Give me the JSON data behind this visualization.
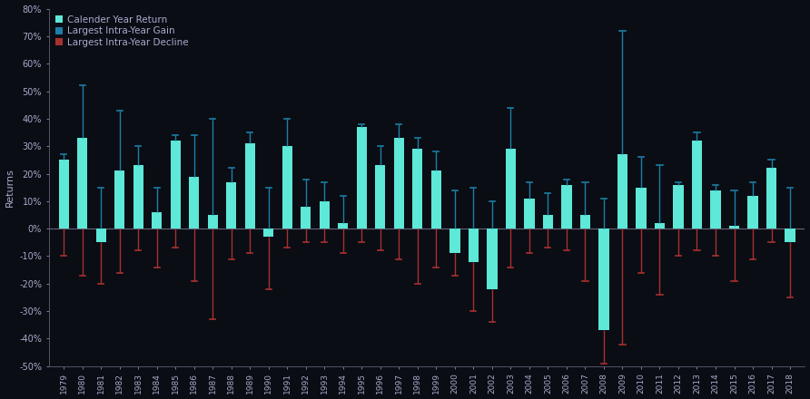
{
  "years": [
    1979,
    1980,
    1981,
    1982,
    1983,
    1984,
    1985,
    1986,
    1987,
    1988,
    1989,
    1990,
    1991,
    1992,
    1993,
    1994,
    1995,
    1996,
    1997,
    1998,
    1999,
    2000,
    2001,
    2002,
    2003,
    2004,
    2005,
    2006,
    2007,
    2008,
    2009,
    2010,
    2011,
    2012,
    2013,
    2014,
    2015,
    2016,
    2017,
    2018
  ],
  "calendar_returns": [
    25,
    33,
    -5,
    21,
    23,
    6,
    32,
    19,
    5,
    17,
    31,
    -3,
    30,
    8,
    10,
    2,
    37,
    23,
    33,
    29,
    21,
    -9,
    -12,
    -22,
    29,
    11,
    5,
    16,
    5,
    -37,
    27,
    15,
    2,
    16,
    32,
    14,
    1,
    12,
    22,
    -5
  ],
  "intra_year_gains": [
    27,
    52,
    15,
    43,
    30,
    15,
    34,
    34,
    40,
    22,
    35,
    15,
    40,
    18,
    17,
    12,
    38,
    30,
    38,
    33,
    28,
    14,
    15,
    10,
    44,
    17,
    13,
    18,
    17,
    11,
    72,
    26,
    23,
    17,
    35,
    16,
    14,
    17,
    25,
    15
  ],
  "intra_year_declines": [
    -10,
    -17,
    -20,
    -16,
    -8,
    -14,
    -7,
    -19,
    -33,
    -11,
    -9,
    -22,
    -7,
    -5,
    -5,
    -9,
    -5,
    -8,
    -11,
    -20,
    -14,
    -17,
    -30,
    -34,
    -14,
    -9,
    -7,
    -8,
    -19,
    -49,
    -42,
    -16,
    -24,
    -10,
    -8,
    -10,
    -19,
    -11,
    -5,
    -25
  ],
  "bar_color": "#5de8d8",
  "gain_line_color": "#1b7fa8",
  "decline_line_color": "#a83030",
  "bg_color": "#0a0d14",
  "fig_bg_color": "#0a0d14",
  "axis_line_color": "#555566",
  "tick_label_color": "#aaaacc",
  "ylabel_color": "#aaaacc",
  "ylim": [
    -50,
    80
  ],
  "yticks": [
    -50,
    -40,
    -30,
    -20,
    -10,
    0,
    10,
    20,
    30,
    40,
    50,
    60,
    70,
    80
  ],
  "ylabel": "Returns",
  "legend_labels": [
    "Calender Year Return",
    "Largest Intra-Year Gain",
    "Largest Intra-Year Decline"
  ]
}
